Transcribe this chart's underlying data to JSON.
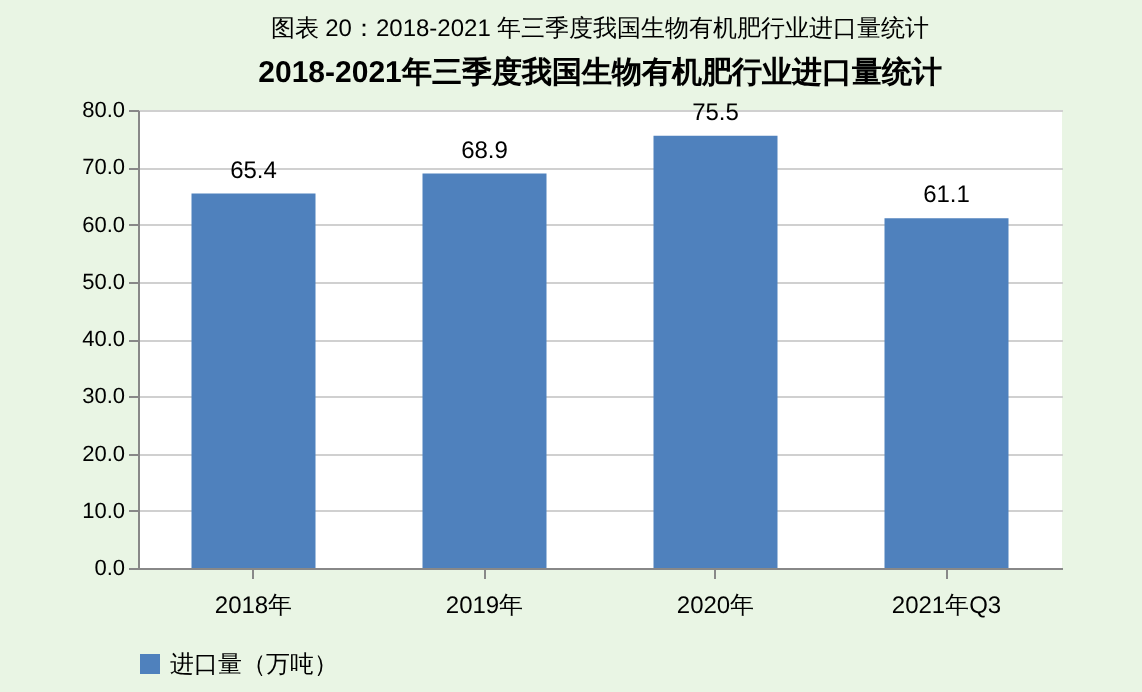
{
  "chart_data": {
    "type": "bar",
    "title": "图表 20：2018-2021 年三季度我国生物有机肥行业进口量统计",
    "subtitle": "2018-2021年三季度我国生物有机肥行业进口量统计",
    "categories": [
      "2018年",
      "2019年",
      "2020年",
      "2021年Q3"
    ],
    "series": [
      {
        "name": "进口量（万吨）",
        "color": "#4f81bd",
        "values": [
          65.4,
          68.9,
          75.5,
          61.1
        ]
      }
    ],
    "ylim": [
      0,
      80
    ],
    "yticks": [
      {
        "value": 0,
        "label": "0.0"
      },
      {
        "value": 10,
        "label": "10.0"
      },
      {
        "value": 20,
        "label": "20.0"
      },
      {
        "value": 30,
        "label": "30.0"
      },
      {
        "value": 40,
        "label": "40.0"
      },
      {
        "value": 50,
        "label": "50.0"
      },
      {
        "value": 60,
        "label": "60.0"
      },
      {
        "value": 70,
        "label": "70.0"
      },
      {
        "value": 80,
        "label": "80.0"
      }
    ],
    "grid": "y",
    "legend": "bottom",
    "data_labels": true
  }
}
